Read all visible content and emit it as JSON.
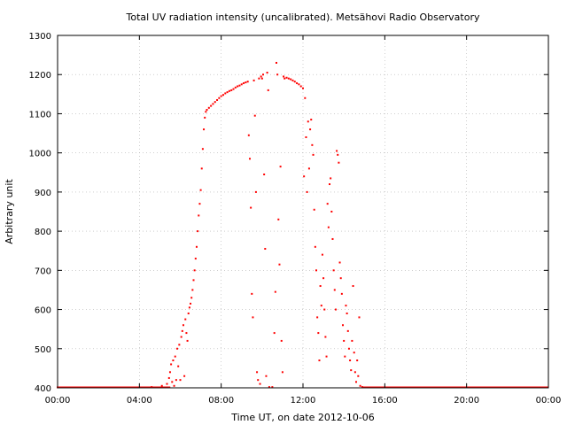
{
  "chart_data": {
    "type": "scatter",
    "title": "Total UV radiation intensity (uncalibrated). Metsähovi Radio Observatory",
    "xlabel": "Time UT, on date 2012-10-06",
    "ylabel": "Arbitrary unit",
    "xlim": [
      0,
      24
    ],
    "ylim": [
      400,
      1300
    ],
    "x_unit": "hours UT",
    "xticks": [
      0,
      4,
      8,
      12,
      16,
      20,
      24
    ],
    "xtick_labels": [
      "00:00",
      "04:00",
      "08:00",
      "12:00",
      "16:00",
      "20:00",
      "00:00"
    ],
    "yticks": [
      400,
      500,
      600,
      700,
      800,
      900,
      1000,
      1100,
      1200,
      1300
    ],
    "ytick_labels": [
      "400",
      "500",
      "600",
      "700",
      "800",
      "900",
      "1000",
      "1100",
      "1200",
      "1300"
    ],
    "grid": true,
    "marker_color": "#ff0000",
    "series": [
      {
        "name": "",
        "points": [
          [
            4.6,
            402
          ],
          [
            5.1,
            405
          ],
          [
            5.35,
            410
          ],
          [
            5.45,
            425
          ],
          [
            5.5,
            440
          ],
          [
            5.55,
            460
          ],
          [
            5.6,
            415
          ],
          [
            5.65,
            470
          ],
          [
            5.7,
            405
          ],
          [
            5.75,
            480
          ],
          [
            5.8,
            420
          ],
          [
            5.85,
            500
          ],
          [
            5.9,
            455
          ],
          [
            5.95,
            510
          ],
          [
            6.0,
            420
          ],
          [
            6.05,
            530
          ],
          [
            6.1,
            545
          ],
          [
            6.15,
            560
          ],
          [
            6.2,
            430
          ],
          [
            6.25,
            575
          ],
          [
            6.3,
            540
          ],
          [
            6.35,
            520
          ],
          [
            6.4,
            590
          ],
          [
            6.45,
            605
          ],
          [
            6.5,
            615
          ],
          [
            6.55,
            630
          ],
          [
            6.6,
            650
          ],
          [
            6.65,
            675
          ],
          [
            6.7,
            700
          ],
          [
            6.75,
            730
          ],
          [
            6.8,
            760
          ],
          [
            6.85,
            800
          ],
          [
            6.9,
            840
          ],
          [
            6.95,
            870
          ],
          [
            7.0,
            905
          ],
          [
            7.05,
            960
          ],
          [
            7.1,
            1010
          ],
          [
            7.15,
            1060
          ],
          [
            7.2,
            1090
          ],
          [
            7.25,
            1105
          ],
          [
            7.3,
            1110
          ],
          [
            7.4,
            1115
          ],
          [
            7.5,
            1120
          ],
          [
            7.6,
            1125
          ],
          [
            7.7,
            1130
          ],
          [
            7.8,
            1135
          ],
          [
            7.9,
            1140
          ],
          [
            8.0,
            1145
          ],
          [
            8.1,
            1148
          ],
          [
            8.2,
            1152
          ],
          [
            8.3,
            1155
          ],
          [
            8.4,
            1158
          ],
          [
            8.5,
            1160
          ],
          [
            8.6,
            1163
          ],
          [
            8.7,
            1167
          ],
          [
            8.8,
            1170
          ],
          [
            8.9,
            1172
          ],
          [
            9.0,
            1175
          ],
          [
            9.1,
            1178
          ],
          [
            9.2,
            1180
          ],
          [
            9.3,
            1182
          ],
          [
            9.35,
            1045
          ],
          [
            9.4,
            985
          ],
          [
            9.45,
            860
          ],
          [
            9.5,
            640
          ],
          [
            9.55,
            580
          ],
          [
            9.6,
            1185
          ],
          [
            9.65,
            1095
          ],
          [
            9.7,
            900
          ],
          [
            9.75,
            440
          ],
          [
            9.8,
            420
          ],
          [
            9.85,
            1190
          ],
          [
            9.9,
            410
          ],
          [
            9.95,
            1195
          ],
          [
            10.0,
            1190
          ],
          [
            10.05,
            1200
          ],
          [
            10.1,
            945
          ],
          [
            10.15,
            755
          ],
          [
            10.2,
            430
          ],
          [
            10.25,
            1205
          ],
          [
            10.3,
            1160
          ],
          [
            10.35,
            402
          ],
          [
            10.5,
            402
          ],
          [
            10.6,
            540
          ],
          [
            10.65,
            645
          ],
          [
            10.7,
            1230
          ],
          [
            10.75,
            1200
          ],
          [
            10.8,
            830
          ],
          [
            10.85,
            715
          ],
          [
            10.9,
            965
          ],
          [
            10.95,
            520
          ],
          [
            11.0,
            440
          ],
          [
            11.05,
            1195
          ],
          [
            11.1,
            1190
          ],
          [
            11.2,
            1192
          ],
          [
            11.3,
            1190
          ],
          [
            11.4,
            1188
          ],
          [
            11.5,
            1185
          ],
          [
            11.6,
            1182
          ],
          [
            11.7,
            1178
          ],
          [
            11.8,
            1175
          ],
          [
            11.9,
            1170
          ],
          [
            12.0,
            1165
          ],
          [
            12.05,
            940
          ],
          [
            12.1,
            1140
          ],
          [
            12.15,
            1040
          ],
          [
            12.2,
            900
          ],
          [
            12.25,
            1080
          ],
          [
            12.3,
            960
          ],
          [
            12.35,
            1060
          ],
          [
            12.4,
            1085
          ],
          [
            12.45,
            1020
          ],
          [
            12.5,
            995
          ],
          [
            12.55,
            855
          ],
          [
            12.6,
            760
          ],
          [
            12.65,
            700
          ],
          [
            12.7,
            580
          ],
          [
            12.75,
            540
          ],
          [
            12.8,
            470
          ],
          [
            12.85,
            660
          ],
          [
            12.9,
            610
          ],
          [
            12.95,
            740
          ],
          [
            13.0,
            680
          ],
          [
            13.05,
            600
          ],
          [
            13.1,
            530
          ],
          [
            13.15,
            480
          ],
          [
            13.2,
            870
          ],
          [
            13.25,
            810
          ],
          [
            13.3,
            920
          ],
          [
            13.35,
            935
          ],
          [
            13.4,
            850
          ],
          [
            13.45,
            780
          ],
          [
            13.5,
            700
          ],
          [
            13.55,
            650
          ],
          [
            13.6,
            600
          ],
          [
            13.65,
            1005
          ],
          [
            13.7,
            995
          ],
          [
            13.75,
            975
          ],
          [
            13.8,
            720
          ],
          [
            13.85,
            680
          ],
          [
            13.9,
            640
          ],
          [
            13.95,
            560
          ],
          [
            14.0,
            520
          ],
          [
            14.05,
            480
          ],
          [
            14.1,
            610
          ],
          [
            14.15,
            590
          ],
          [
            14.2,
            545
          ],
          [
            14.25,
            500
          ],
          [
            14.3,
            470
          ],
          [
            14.35,
            445
          ],
          [
            14.4,
            520
          ],
          [
            14.45,
            660
          ],
          [
            14.5,
            490
          ],
          [
            14.55,
            440
          ],
          [
            14.6,
            415
          ],
          [
            14.65,
            470
          ],
          [
            14.7,
            430
          ],
          [
            14.75,
            580
          ],
          [
            14.8,
            405
          ],
          [
            14.9,
            402
          ]
        ]
      }
    ],
    "baseline": {
      "value": 400,
      "x_ranges": [
        [
          0,
          5.5
        ],
        [
          14.9,
          24
        ]
      ]
    }
  }
}
